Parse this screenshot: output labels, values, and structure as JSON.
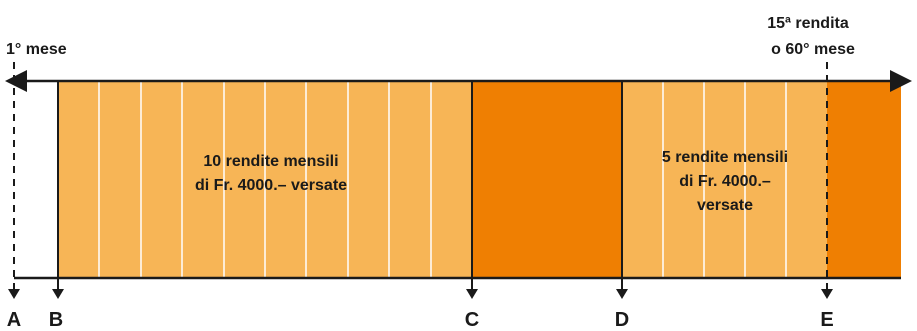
{
  "labels": {
    "start": "1° mese",
    "end_line1": "15ª rendita",
    "end_line2": "o 60° mese",
    "block1_line1": "10 rendite mensili",
    "block1_line2": "di Fr. 4000.– versate",
    "block2_line1": "5 rendite mensili",
    "block2_line2": "di Fr. 4000.–",
    "block2_line3": "versate"
  },
  "markers": [
    "A",
    "B",
    "C",
    "D",
    "E"
  ],
  "colors": {
    "light_orange": "#F7B556",
    "dark_orange": "#EF7F02",
    "stroke": "#1a1a1a"
  }
}
